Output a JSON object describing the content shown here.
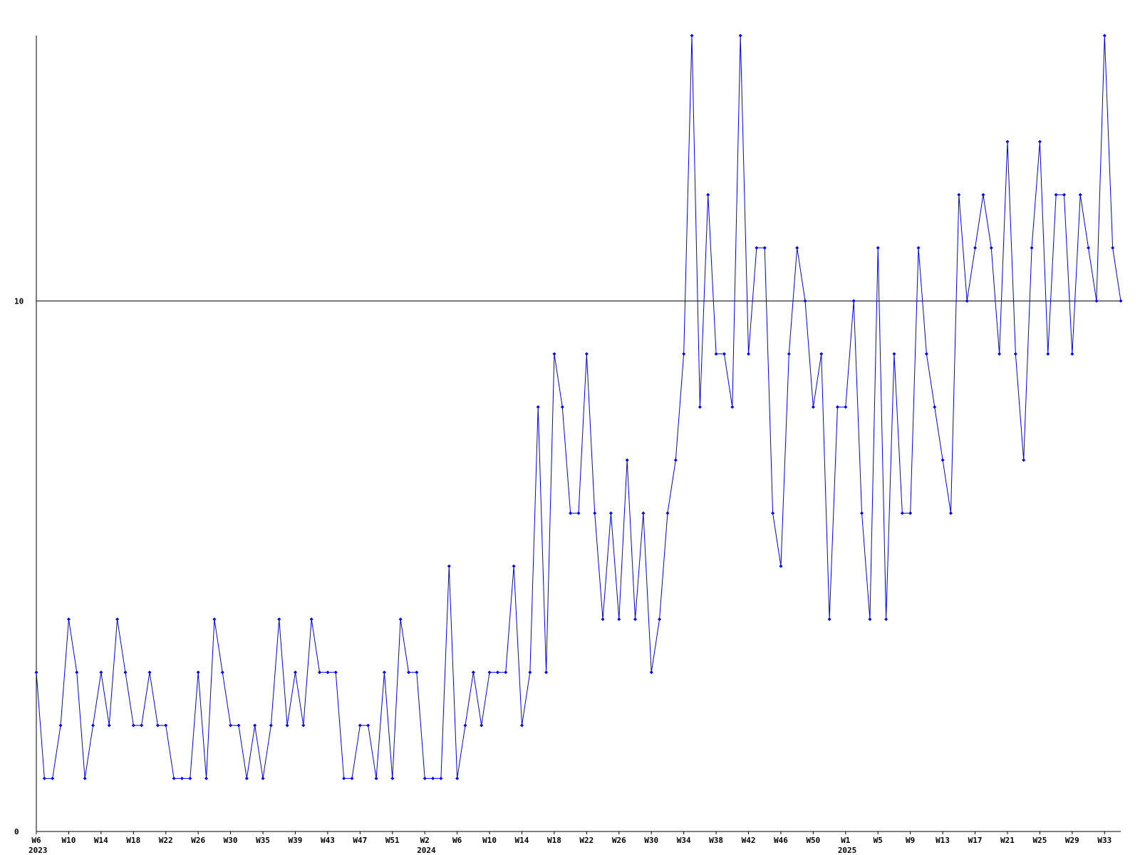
{
  "chart_data": {
    "type": "line",
    "categories": [
      "W6",
      null,
      null,
      null,
      "W10",
      null,
      null,
      null,
      "W14",
      null,
      null,
      null,
      "W18",
      null,
      null,
      null,
      "W22",
      null,
      null,
      null,
      "W26",
      null,
      null,
      null,
      "W30",
      null,
      null,
      null,
      "W35",
      null,
      null,
      null,
      "W39",
      null,
      null,
      null,
      "W43",
      null,
      null,
      null,
      "W47",
      null,
      null,
      null,
      "W51",
      null,
      null,
      null,
      "W2",
      null,
      null,
      null,
      "W6",
      null,
      null,
      null,
      "W10",
      null,
      null,
      null,
      "W14",
      null,
      null,
      null,
      "W18",
      null,
      null,
      null,
      "W22",
      null,
      null,
      null,
      "W26",
      null,
      null,
      null,
      "W30",
      null,
      null,
      null,
      "W34",
      null,
      null,
      null,
      "W38",
      null,
      null,
      null,
      "W42",
      null,
      null,
      null,
      "W46",
      null,
      null,
      null,
      "W50",
      null,
      null,
      null,
      "W1",
      null,
      null,
      null,
      "W5",
      null,
      null,
      null,
      "W9",
      null,
      null,
      null,
      "W13",
      null,
      null,
      null,
      "W17",
      null,
      null,
      null,
      "W21",
      null,
      null,
      null,
      "W25",
      null,
      null,
      null,
      "W29",
      null,
      null,
      null,
      "W33",
      null,
      null
    ],
    "category_years": [
      "2023",
      null,
      null,
      null,
      null,
      null,
      null,
      null,
      null,
      null,
      null,
      null,
      null,
      null,
      null,
      null,
      null,
      null,
      null,
      null,
      null,
      null,
      null,
      null,
      null,
      null,
      null,
      null,
      null,
      null,
      null,
      null,
      null,
      null,
      null,
      null,
      null,
      null,
      null,
      null,
      null,
      null,
      null,
      null,
      null,
      null,
      null,
      null,
      "2024",
      null,
      null,
      null,
      null,
      null,
      null,
      null,
      null,
      null,
      null,
      null,
      null,
      null,
      null,
      null,
      null,
      null,
      null,
      null,
      null,
      null,
      null,
      null,
      null,
      null,
      null,
      null,
      null,
      null,
      null,
      null,
      null,
      null,
      null,
      null,
      null,
      null,
      null,
      null,
      null,
      null,
      null,
      null,
      null,
      null,
      null,
      null,
      null,
      null,
      null,
      null,
      "2025",
      null,
      null,
      null,
      null,
      null,
      null,
      null,
      null,
      null,
      null,
      null,
      null,
      null,
      null,
      null,
      null,
      null,
      null,
      null,
      null,
      null,
      null,
      null,
      null,
      null,
      null,
      null,
      null,
      null,
      null
    ],
    "series": [
      {
        "color": "#0000ff",
        "values": [
          3,
          1,
          1,
          2,
          4,
          3,
          1,
          2,
          3,
          2,
          4,
          3,
          2,
          2,
          3,
          2,
          2,
          1,
          1,
          1,
          3,
          1,
          4,
          3,
          2,
          2,
          1,
          2,
          1,
          2,
          4,
          2,
          3,
          2,
          4,
          3,
          3,
          3,
          1,
          1,
          2,
          2,
          1,
          3,
          1,
          4,
          3,
          3,
          1,
          1,
          1,
          5,
          1,
          2,
          3,
          2,
          3,
          3,
          3,
          5,
          2,
          3,
          8,
          3,
          9,
          8,
          6,
          6,
          9,
          6,
          4,
          6,
          4,
          7,
          4,
          6,
          3,
          4,
          6,
          7,
          9,
          15,
          8,
          12,
          9,
          9,
          8,
          15,
          9,
          11,
          11,
          6,
          5,
          9,
          11,
          10,
          8,
          9,
          4,
          8,
          8,
          10,
          6,
          4,
          11,
          4,
          9,
          6,
          6,
          11,
          9,
          8,
          7,
          6,
          12,
          10,
          11,
          12,
          11,
          9,
          13,
          9,
          7,
          11,
          13,
          9,
          12,
          12,
          9,
          12,
          11,
          10,
          15,
          11,
          10
        ]
      }
    ],
    "ylim": [
      0,
      15
    ],
    "yticks": [
      0,
      10
    ],
    "grid": true
  }
}
